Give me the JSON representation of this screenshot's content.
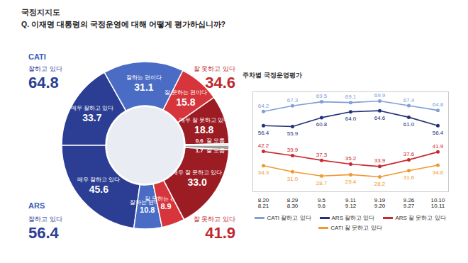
{
  "chart_data": [
    {
      "type": "donut",
      "title": "국정지지도",
      "subtitle": "Q. 이재명 대통령의 국정운영에 대해 어떻게 평가하십니까?",
      "groups": [
        {
          "name": "CATI",
          "totals": [
            {
              "label": "잘하고 있다",
              "value": 64.8,
              "color": "#2c3e94"
            },
            {
              "label": "잘 못하고 있다",
              "value": 34.6,
              "color": "#c0282d"
            }
          ],
          "segments": [
            {
              "label": "매우 잘하고 있다",
              "value": 33.7,
              "color": "#2c3e94"
            },
            {
              "label": "잘하는 편이다",
              "value": 31.1,
              "color": "#4a6cc4"
            },
            {
              "label": "잘 못하는 편이다",
              "value": 15.8,
              "color": "#d6353b"
            },
            {
              "label": "매우 잘 못하고 있다",
              "value": 18.8,
              "color": "#9c1c24"
            },
            {
              "label": "잘 모름",
              "value": 0.6,
              "color": "#9e9e9e"
            }
          ]
        },
        {
          "name": "ARS",
          "totals": [
            {
              "label": "잘하고 있다",
              "value": 56.4,
              "color": "#2c3e94"
            },
            {
              "label": "잘 못하고 있다",
              "value": 41.9,
              "color": "#c0282d"
            }
          ],
          "segments": [
            {
              "label": "매우 잘하고 있다",
              "value": 45.6,
              "color": "#2c3e94"
            },
            {
              "label": "잘하는 편이다",
              "value": 10.8,
              "color": "#4a6cc4"
            },
            {
              "label": "잘 못하는 편이다",
              "value": 8.9,
              "color": "#d6353b"
            },
            {
              "label": "매우 잘 못하고 있다",
              "value": 33.0,
              "value_label": "33.0",
              "color": "#9c1c24"
            },
            {
              "label": "잘 모름",
              "value": 1.7,
              "color": "#9e9e9e"
            }
          ]
        }
      ]
    },
    {
      "type": "line",
      "title": "주차별 국정운영평가",
      "categories": [
        "8.20\n8.21",
        "8.29\n8.30",
        "9.5\n9.6",
        "9.11\n9.12",
        "9.19\n9.20",
        "9.26\n9.27",
        "10.10\n10.11"
      ],
      "series": [
        {
          "name": "CATI 잘하고 있다",
          "color": "#7f9fd6",
          "values": [
            64.2,
            67.3,
            69.5,
            69.1,
            69.9,
            67.4,
            64.8
          ],
          "value_labels": [
            "64.2",
            "67.3",
            "69.5",
            "69.1",
            "69.9",
            "67.4",
            "64.8"
          ]
        },
        {
          "name": "ARS 잘하고 있다",
          "color": "#23307a",
          "values": [
            56.4,
            55.9,
            60.8,
            64.0,
            64.6,
            61.0,
            56.4
          ],
          "value_labels": [
            "56.4",
            "55.9",
            "60.8",
            "64.0",
            "64.6",
            "61.0",
            "56.4"
          ]
        },
        {
          "name": "ARS 잘 못하고 있다",
          "color": "#c8282e",
          "values": [
            42.2,
            39.9,
            37.3,
            35.2,
            33.9,
            37.6,
            41.9
          ],
          "value_labels": [
            "42.2",
            "39.9",
            "37.3",
            "35.2",
            "33.9",
            "37.6",
            "41.9"
          ]
        },
        {
          "name": "CATI 잘 못하고 있다",
          "color": "#ee9a2e",
          "values": [
            34.3,
            31.0,
            28.7,
            29.4,
            28.2,
            31.6,
            34.6
          ],
          "value_labels": [
            "34.3",
            "31.0",
            "28.7",
            "29.4",
            "28.2",
            "31.6",
            "34.6"
          ]
        }
      ],
      "ylim": [
        20,
        75
      ],
      "yticks": [],
      "tick_labels": "x",
      "data_labels": true,
      "marker": "circle",
      "legend": "bottom"
    }
  ]
}
